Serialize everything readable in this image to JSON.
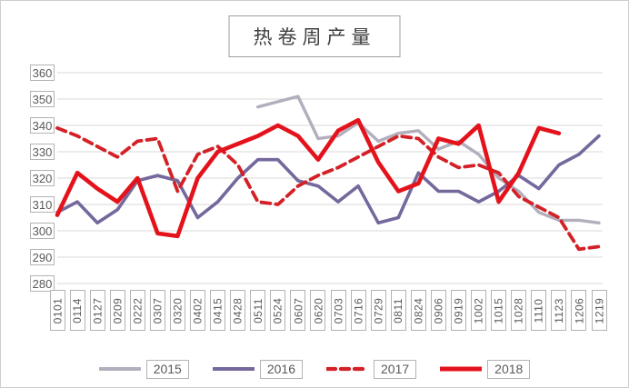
{
  "chart_data": {
    "type": "line",
    "title": "热卷周产量",
    "categories": [
      "0101",
      "0114",
      "0127",
      "0209",
      "0222",
      "0307",
      "0320",
      "0402",
      "0415",
      "0428",
      "0511",
      "0524",
      "0607",
      "0620",
      "0703",
      "0716",
      "0729",
      "0811",
      "0824",
      "0906",
      "0919",
      "1002",
      "1015",
      "1028",
      "1110",
      "1123",
      "1206",
      "1219"
    ],
    "ylim": [
      280,
      360
    ],
    "ytick_step": 10,
    "ytick_labels": [
      "360",
      "350",
      "340",
      "330",
      "320",
      "310",
      "300",
      "290",
      "280"
    ],
    "grid": true,
    "legend_position": "bottom",
    "series": [
      {
        "name": "2015",
        "color": "#b2aebc",
        "style": "solid",
        "width": 3.4,
        "values": [
          null,
          null,
          null,
          null,
          null,
          null,
          null,
          null,
          null,
          null,
          347,
          349,
          351,
          335,
          336,
          341,
          334,
          337,
          338,
          331,
          334,
          329,
          320,
          315,
          307,
          304,
          304,
          303
        ]
      },
      {
        "name": "2016",
        "color": "#74689c",
        "style": "solid",
        "width": 3.6,
        "values": [
          307,
          311,
          303,
          308,
          319,
          321,
          319,
          305,
          311,
          320,
          327,
          327,
          319,
          317,
          311,
          317,
          303,
          305,
          322,
          315,
          315,
          311,
          315,
          321,
          316,
          325,
          329,
          336
        ]
      },
      {
        "name": "2017",
        "color": "#d32127",
        "style": "dashed",
        "width": 3.8,
        "values": [
          339,
          336,
          332,
          328,
          334,
          335,
          315,
          329,
          332,
          325,
          311,
          310,
          317,
          321,
          324,
          328,
          332,
          336,
          335,
          328,
          324,
          325,
          322,
          313,
          309,
          305,
          293,
          294
        ]
      },
      {
        "name": "2018",
        "color": "#e4121b",
        "style": "solid",
        "width": 4.6,
        "values": [
          306,
          322,
          316,
          311,
          320,
          299,
          298,
          320,
          330,
          333,
          336,
          340,
          336,
          327,
          338,
          342,
          326,
          315,
          318,
          335,
          333,
          340,
          311,
          322,
          339,
          337,
          null,
          null
        ]
      }
    ]
  },
  "colors": {
    "gridline": "#d9d9d9",
    "tick_text": "#595959",
    "label_border": "#b3b3b3",
    "title_text": "#3f3f3f"
  }
}
